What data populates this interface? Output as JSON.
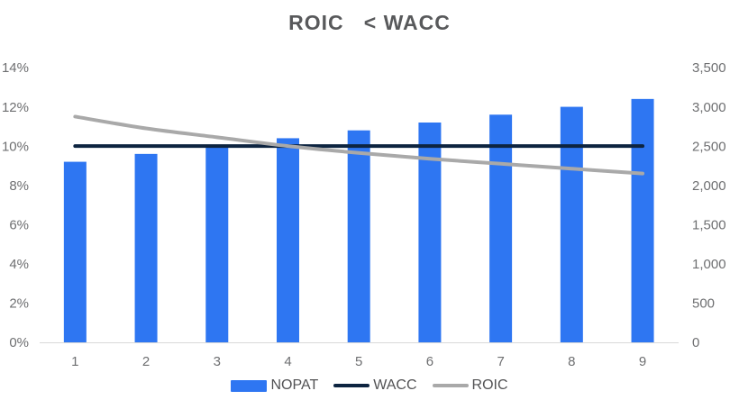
{
  "page": {
    "background": "#FFFFFF"
  },
  "chart_data": {
    "type": "combo-bar-line",
    "title": "ROIC   < WACC",
    "categories": [
      "1",
      "2",
      "3",
      "4",
      "5",
      "6",
      "7",
      "8",
      "9"
    ],
    "series": [
      {
        "name": "NOPAT",
        "kind": "bar",
        "axis": "right",
        "color": "#2E76F2",
        "values": [
          2300,
          2400,
          2500,
          2600,
          2700,
          2800,
          2900,
          3000,
          3100
        ]
      },
      {
        "name": "WACC",
        "kind": "line",
        "axis": "left",
        "color": "#0D2440",
        "smooth": false,
        "values": [
          10,
          10,
          10,
          10,
          10,
          10,
          10,
          10,
          10
        ]
      },
      {
        "name": "ROIC",
        "kind": "line",
        "axis": "left",
        "color": "#A9A9A9",
        "smooth": true,
        "values": [
          11.5,
          10.9,
          10.45,
          10.0,
          9.65,
          9.35,
          9.1,
          8.85,
          8.6
        ]
      }
    ],
    "left_axis": {
      "min": 0,
      "max": 14,
      "unit": "percent",
      "ticks": [
        "0%",
        "2%",
        "4%",
        "6%",
        "8%",
        "10%",
        "12%",
        "14%"
      ]
    },
    "right_axis": {
      "min": 0,
      "max": 3500,
      "unit": "number",
      "ticks": [
        "0",
        "500",
        "1,000",
        "1,500",
        "2,000",
        "2,500",
        "3,000",
        "3,500"
      ]
    },
    "grid": false,
    "legend_position": "bottom",
    "axis_line_color": "#D9D9D9",
    "tick_label_color": "#6E6F71",
    "title_color": "#58595B",
    "legend_text_color": "#525254"
  }
}
